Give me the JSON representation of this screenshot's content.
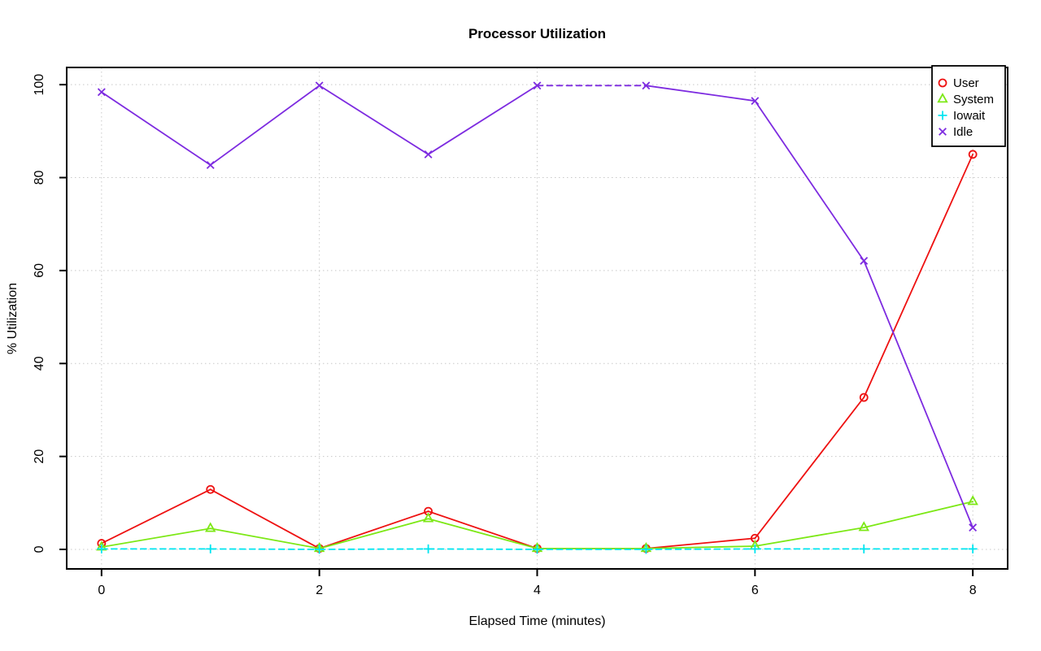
{
  "chart_data": {
    "type": "line",
    "title": "Processor Utilization",
    "xlabel": "Elapsed Time (minutes)",
    "ylabel": "% Utilization",
    "x": [
      0,
      1,
      2,
      3,
      4,
      5,
      6,
      7,
      8
    ],
    "series": [
      {
        "name": "User",
        "color": "#ee1111",
        "marker": "circle",
        "line": "solid",
        "values": [
          1.3,
          12.9,
          0.2,
          8.2,
          0.2,
          0.2,
          2.4,
          32.7,
          85.0
        ]
      },
      {
        "name": "System",
        "color": "#7ce815",
        "marker": "triangle",
        "line": "solid",
        "values": [
          0.5,
          4.5,
          0.2,
          6.6,
          0.2,
          0.2,
          0.7,
          4.7,
          10.3
        ]
      },
      {
        "name": "Iowait",
        "color": "#00e5f0",
        "marker": "plus",
        "line": "dashed",
        "values": [
          0.1,
          0.1,
          0.0,
          0.1,
          0.0,
          0.0,
          0.1,
          0.1,
          0.1
        ]
      },
      {
        "name": "Idle",
        "color": "#7d2be0",
        "marker": "x",
        "line": "solid",
        "values": [
          98.4,
          82.7,
          99.8,
          85.0,
          99.8,
          99.8,
          96.5,
          62.1,
          4.7
        ]
      }
    ],
    "xticks": [
      0,
      2,
      4,
      6,
      8
    ],
    "yticks": [
      0,
      20,
      40,
      60,
      80,
      100
    ],
    "xlim": [
      -0.32,
      8.32
    ],
    "ylim": [
      -4.2,
      103.7
    ],
    "grid": true,
    "legend": {
      "position": "top-right",
      "entries": [
        "User",
        "System",
        "Iowait",
        "Idle"
      ]
    }
  },
  "colors": {
    "grid": "#c8c8c8",
    "axis": "#000000",
    "background": "#ffffff"
  }
}
